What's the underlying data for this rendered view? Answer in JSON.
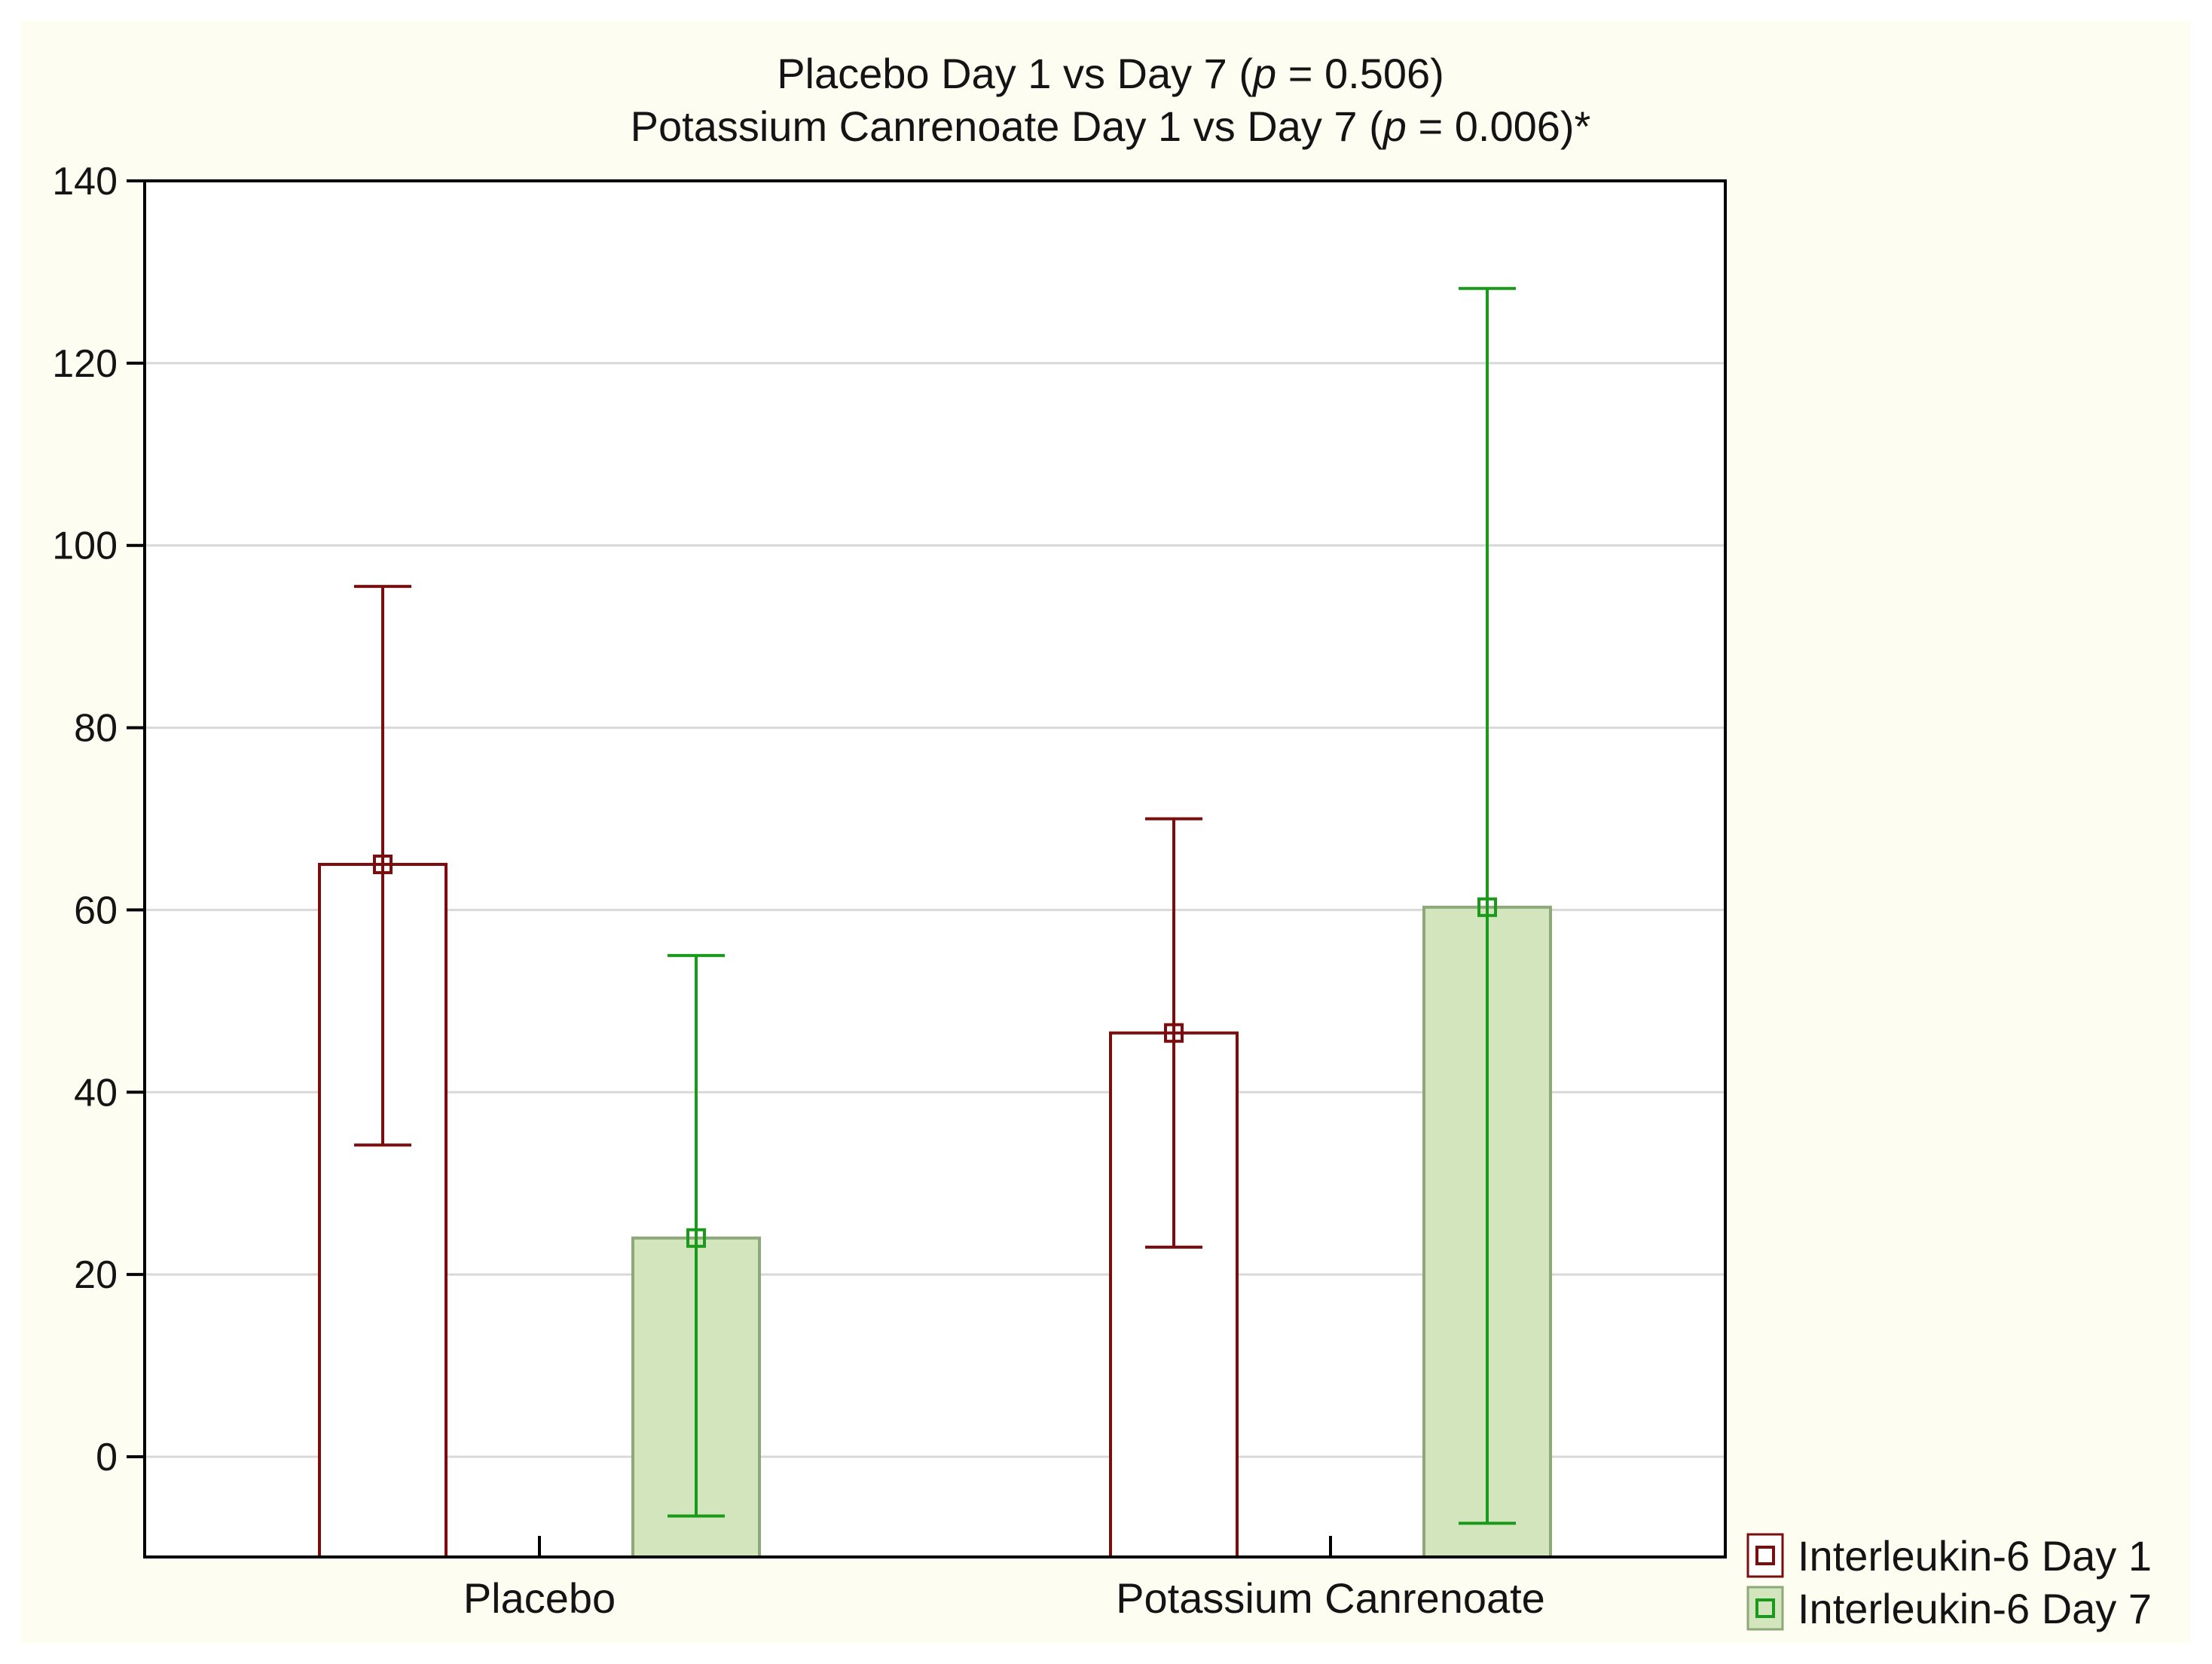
{
  "chart_data": {
    "type": "bar",
    "title_parts": [
      [
        {
          "text": "Placebo Day 1 vs Day 7 (",
          "italic": false
        },
        {
          "text": "p",
          "italic": true
        },
        {
          "text": " = 0.506)",
          "italic": false
        }
      ],
      [
        {
          "text": "Potassium Canrenoate Day 1 vs Day 7 (",
          "italic": false
        },
        {
          "text": "p",
          "italic": true
        },
        {
          "text": " = 0.006)*",
          "italic": false
        }
      ]
    ],
    "xlabel": "",
    "ylabel": "",
    "categories": [
      "Placebo",
      "Potassium Canrenoate"
    ],
    "ylim": [
      -11,
      140
    ],
    "yticks": [
      0,
      20,
      40,
      60,
      80,
      100,
      120,
      140
    ],
    "grid": true,
    "legend_position": "bottom-right outside",
    "series": [
      {
        "name": "Interleukin-6 Day 1",
        "values": [
          65,
          46.5
        ],
        "error_low": [
          34.2,
          23
        ],
        "error_high": [
          95.5,
          70
        ],
        "fill": "#ffffff",
        "stroke": "#7a0d0d",
        "error_color": "#7a0d0d"
      },
      {
        "name": "Interleukin-6 Day 7",
        "values": [
          24,
          60.3
        ],
        "error_low": [
          -6.5,
          -7.3
        ],
        "error_high": [
          55,
          128.2
        ],
        "fill": "#d3e5bc",
        "stroke": "#8ea87a",
        "error_color": "#1a9a1a"
      }
    ]
  }
}
